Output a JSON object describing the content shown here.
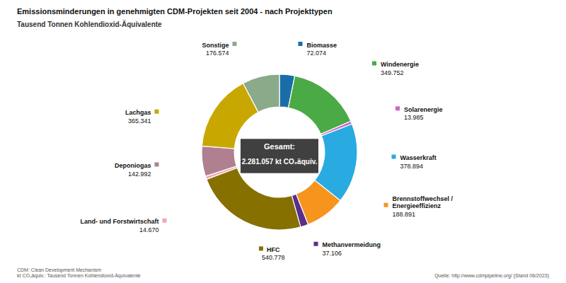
{
  "chart_data": {
    "type": "donut",
    "title": "Emissionsminderungen in genehmigten CDM-Projekten seit 2004 - nach Projekttypen",
    "subtitle": "Tausend Tonnen Kohlendioxid-Äquivalente",
    "annotations": [
      "Gesamt:",
      "2.281.057 kt CO₂äquiv.",
      "CDM: Clean Development Mechanism\nkt CO₂äquiv.: Tausend Tonnen Kohlendioxid-Äquivalente",
      "Quelle: http://www.cdmpipeline.org/ (Stand 06/2023)"
    ],
    "categories": [
      "Biomasse",
      "Windenergie",
      "Solarenergie",
      "Wasserkraft",
      "Brennstoffwechsel /\nEnergieeffizienz",
      "Methanvermeidung",
      "HFC",
      "Land- und Forstwirtschaft",
      "Deponiogas",
      "Lachgas",
      "Sonstige"
    ],
    "values": [
      72.074,
      349.752,
      13.985,
      378.894,
      188.891,
      37.106,
      540.778,
      14.67,
      142.992,
      365.341,
      176.574
    ],
    "value_labels": [
      "72.074",
      "349.752",
      "13.985",
      "378.894",
      "188.891",
      "37.106",
      "540.778",
      "14.670",
      "142.992",
      "365.341",
      "176.574"
    ],
    "colors": [
      "#1a6ea8",
      "#4aaa45",
      "#cc66cc",
      "#29abe2",
      "#f7941d",
      "#5b2d8e",
      "#857000",
      "#f0a8b0",
      "#b08090",
      "#c8a800",
      "#8aaa8a"
    ],
    "data_labels": true
  }
}
